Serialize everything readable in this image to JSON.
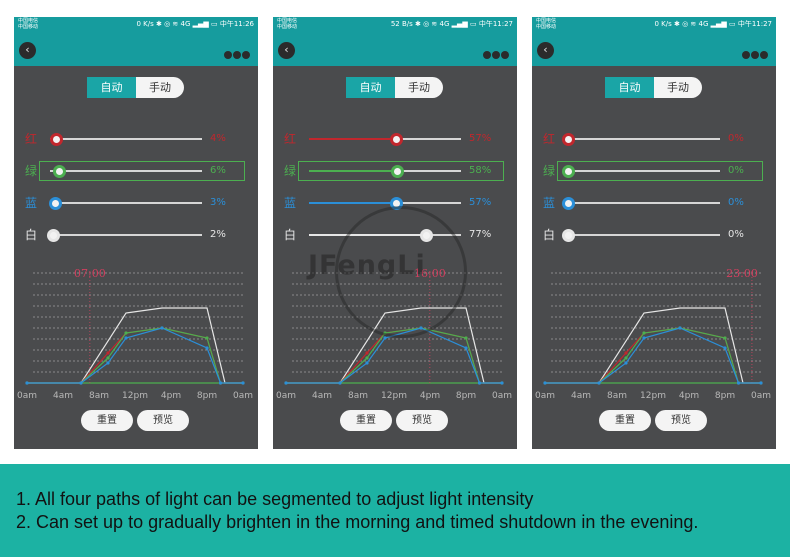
{
  "colors": {
    "red": "#c1272d",
    "green": "#4caf50",
    "blue": "#2b8fd8",
    "white": "#e6e6e6",
    "grey": "#9a9a9a",
    "teal": "#169c9e",
    "time": "#d0405f"
  },
  "screens": [
    {
      "carrier_top": "中国电信",
      "carrier_bottom": "中国移动",
      "status_right": "0 K/s ✱ ◎ ≋ 4G ▂▄▆ ▭ 中午11:26",
      "tabs": {
        "auto": "自动",
        "manual": "手动"
      },
      "channels": [
        {
          "name": "红",
          "value": "4%",
          "level": 0.04,
          "color": "#c1272d",
          "has_fill": false
        },
        {
          "name": "绿",
          "value": "6%",
          "level": 0.06,
          "color": "#4caf50",
          "has_fill": false
        },
        {
          "name": "蓝",
          "value": "3%",
          "level": 0.03,
          "color": "#2b8fd8",
          "has_fill": false
        },
        {
          "name": "白",
          "value": "2%",
          "level": 0.02,
          "color": "#e6e6e6",
          "has_fill": false
        }
      ],
      "time": "07:00",
      "time_pos": 0.291,
      "buttons": {
        "reset": "重置",
        "preview": "预览"
      }
    },
    {
      "carrier_top": "中国电信",
      "carrier_bottom": "中国移动",
      "status_right": "52 B/s ✱ ◎ ≋ 4G ▂▄▆ ▭ 中午11:27",
      "tabs": {
        "auto": "自动",
        "manual": "手动"
      },
      "channels": [
        {
          "name": "红",
          "value": "57%",
          "level": 0.57,
          "color": "#c1272d",
          "has_fill": true
        },
        {
          "name": "绿",
          "value": "58%",
          "level": 0.58,
          "color": "#4caf50",
          "has_fill": true
        },
        {
          "name": "蓝",
          "value": "57%",
          "level": 0.57,
          "color": "#2b8fd8",
          "has_fill": true
        },
        {
          "name": "白",
          "value": "77%",
          "level": 0.77,
          "color": "#e6e6e6",
          "has_fill": true
        }
      ],
      "time": "16:00",
      "time_pos": 0.666,
      "buttons": {
        "reset": "重置",
        "preview": "预览"
      }
    },
    {
      "carrier_top": "中国电信",
      "carrier_bottom": "中国移动",
      "status_right": "0 K/s ✱ ◎ ≋ 4G ▂▄▆ ▭ 中午11:27",
      "tabs": {
        "auto": "自动",
        "manual": "手动"
      },
      "channels": [
        {
          "name": "红",
          "value": "0%",
          "level": 0.0,
          "color": "#c1272d",
          "has_fill": false
        },
        {
          "name": "绿",
          "value": "0%",
          "level": 0.0,
          "color": "#4caf50",
          "has_fill": false
        },
        {
          "name": "蓝",
          "value": "0%",
          "level": 0.0,
          "color": "#2b8fd8",
          "has_fill": false
        },
        {
          "name": "白",
          "value": "0%",
          "level": 0.0,
          "color": "#e6e6e6",
          "has_fill": false
        }
      ],
      "time": "23:00",
      "time_pos": 0.958,
      "buttons": {
        "reset": "重置",
        "preview": "预览"
      }
    }
  ],
  "chart_data": {
    "type": "line",
    "x_tick_labels": [
      "0am",
      "4am",
      "8am",
      "12pm",
      "4pm",
      "8pm",
      "0am"
    ],
    "xlim": [
      0,
      24
    ],
    "ylim": [
      0,
      100
    ],
    "grid": true,
    "series": [
      {
        "color": "white",
        "x": [
          0,
          6,
          11,
          15,
          20,
          22,
          24
        ],
        "y": [
          0,
          0,
          70,
          75,
          75,
          0,
          0
        ]
      },
      {
        "color": "red",
        "x": [
          0,
          6,
          9,
          11,
          15,
          20,
          21.5,
          24
        ],
        "y": [
          0,
          0,
          30,
          50,
          55,
          45,
          0,
          0
        ]
      },
      {
        "color": "green",
        "x": [
          0,
          6,
          9,
          11,
          15,
          20,
          21.5,
          24
        ],
        "y": [
          0,
          0,
          25,
          50,
          55,
          45,
          0,
          0
        ]
      },
      {
        "color": "blue",
        "x": [
          0,
          6,
          9,
          11,
          15,
          20,
          21.5,
          24
        ],
        "y": [
          0,
          0,
          20,
          45,
          55,
          35,
          0,
          0
        ]
      }
    ]
  },
  "watermark": "JFengLi",
  "caption": {
    "line1": "1. All four paths of light can be segmented to adjust light intensity",
    "line2": "2. Can set up to gradually brighten in the morning and timed shutdown in the evening."
  }
}
